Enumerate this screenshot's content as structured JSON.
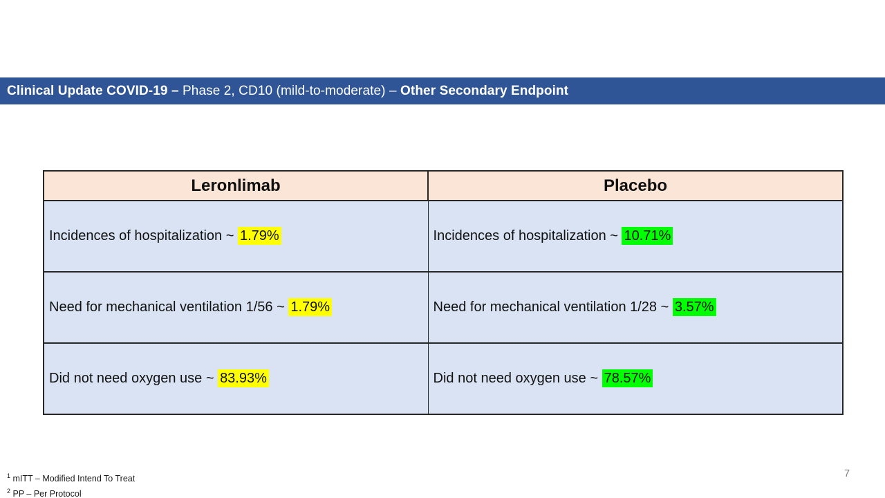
{
  "title": {
    "segments": [
      {
        "text": "Clinical Update COVID-19 – ",
        "bold": true
      },
      {
        "text": "Phase 2, CD10 (mild-to-moderate) – ",
        "bold": false
      },
      {
        "text": "Other Secondary Endpoint",
        "bold": true
      }
    ]
  },
  "table": {
    "columns": [
      {
        "header": "Leronlimab"
      },
      {
        "header": "Placebo"
      }
    ],
    "rows": [
      {
        "cells": [
          {
            "prefix": "Incidences of hospitalization ~ ",
            "value": "1.79%",
            "highlight": "yellow"
          },
          {
            "prefix": "Incidences of hospitalization ~ ",
            "value": "10.71%",
            "highlight": "green"
          }
        ]
      },
      {
        "cells": [
          {
            "prefix": "Need for mechanical ventilation 1/56 ~ ",
            "value": "1.79%",
            "highlight": "yellow"
          },
          {
            "prefix": "Need for mechanical ventilation 1/28 ~ ",
            "value": "3.57%",
            "highlight": "green"
          }
        ]
      },
      {
        "cells": [
          {
            "prefix": "Did not need oxygen use ~ ",
            "value": "83.93%",
            "highlight": "yellow"
          },
          {
            "prefix": "Did not need oxygen use ~ ",
            "value": "78.57%",
            "highlight": "green"
          }
        ]
      }
    ]
  },
  "footnotes": [
    {
      "sup": "1",
      "text": " mITT – Modified Intend To Treat"
    },
    {
      "sup": "2",
      "text": " PP – Per Protocol"
    }
  ],
  "page_number": "7",
  "colors": {
    "title_bar": "#2F5597",
    "table_header_fill": "#FBE5D6",
    "table_row_fill": "#DAE3F3",
    "highlight_yellow": "#FFFF00",
    "highlight_green": "#00FF00"
  }
}
